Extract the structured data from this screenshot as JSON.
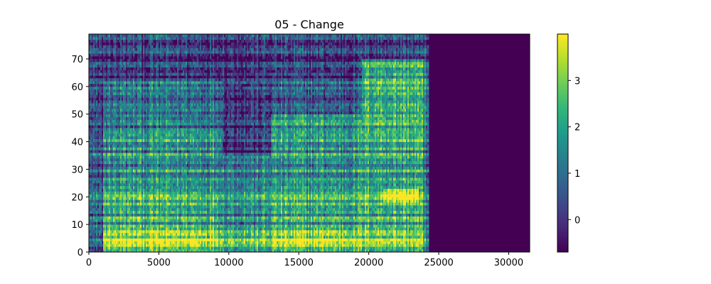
{
  "chart_data": {
    "type": "heatmap",
    "title": "05 - Change",
    "xlabel": "",
    "ylabel": "",
    "xlim": [
      0,
      31500
    ],
    "ylim": [
      0,
      79
    ],
    "x_ticks": [
      "0",
      "5000",
      "10000",
      "15000",
      "20000",
      "25000",
      "30000"
    ],
    "y_ticks": [
      "0",
      "10",
      "20",
      "30",
      "40",
      "50",
      "60",
      "70"
    ],
    "colorbar": {
      "vmin": -0.7,
      "vmax": 4.0,
      "ticks": [
        "0",
        "1",
        "2",
        "3"
      ],
      "colormap": "viridis"
    },
    "regions": [
      {
        "x_start": 0,
        "x_end": 1000,
        "level": "very low"
      },
      {
        "x_start": 1000,
        "x_end": 9500,
        "level": "high, strongest below bin 10, moderate bins 10-45"
      },
      {
        "x_start": 9500,
        "x_end": 13000,
        "level": "moderate below bin 35, very low above"
      },
      {
        "x_start": 13000,
        "x_end": 19500,
        "level": "high, strongest below bin 10, moderate bins 10-50"
      },
      {
        "x_start": 19500,
        "x_end": 24200,
        "level": "high up to bin 70, peak near bins 18-22"
      },
      {
        "x_start": 24200,
        "x_end": 31500,
        "level": "minimum"
      }
    ],
    "grid": false
  },
  "colors": {
    "viridis_low": "#440154",
    "viridis_mid": "#21918c",
    "viridis_high": "#fde725"
  }
}
